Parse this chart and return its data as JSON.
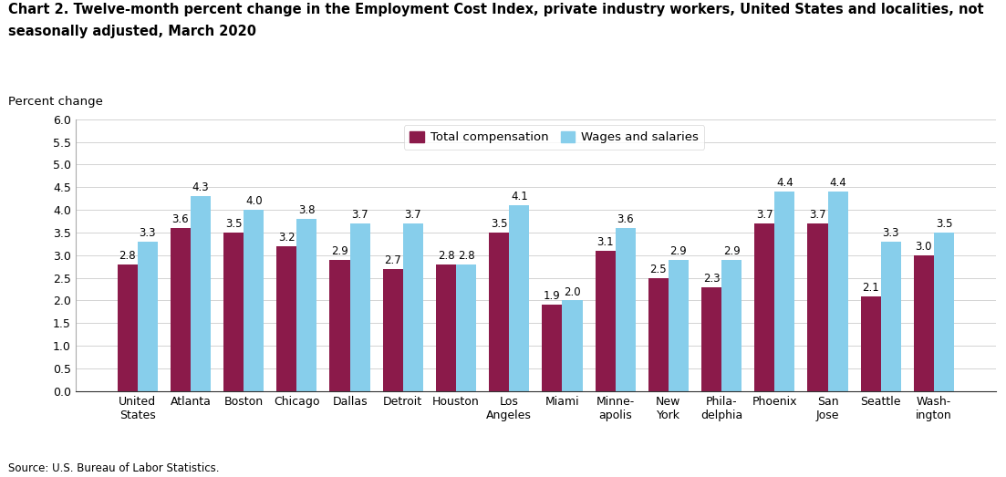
{
  "title_line1": "Chart 2. Twelve-month percent change in the Employment Cost Index, private industry workers, United States and localities, not",
  "title_line2": "seasonally adjusted, March 2020",
  "ylabel_text": "Percent change",
  "source": "Source: U.S. Bureau of Labor Statistics.",
  "categories": [
    "United\nStates",
    "Atlanta",
    "Boston",
    "Chicago",
    "Dallas",
    "Detroit",
    "Houston",
    "Los\nAngeles",
    "Miami",
    "Minne-\napolis",
    "New\nYork",
    "Phila-\ndelphia",
    "Phoenix",
    "San\nJose",
    "Seattle",
    "Wash-\nington"
  ],
  "total_compensation": [
    2.8,
    3.6,
    3.5,
    3.2,
    2.9,
    2.7,
    2.8,
    3.5,
    1.9,
    3.1,
    2.5,
    2.3,
    3.7,
    3.7,
    2.1,
    3.0
  ],
  "wages_salaries": [
    3.3,
    4.3,
    4.0,
    3.8,
    3.7,
    3.7,
    2.8,
    4.1,
    2.0,
    3.6,
    2.9,
    2.9,
    4.4,
    4.4,
    3.3,
    3.5
  ],
  "total_comp_color": "#8B1A4A",
  "wages_color": "#87CEEB",
  "ylim": [
    0.0,
    6.0
  ],
  "yticks": [
    0.0,
    0.5,
    1.0,
    1.5,
    2.0,
    2.5,
    3.0,
    3.5,
    4.0,
    4.5,
    5.0,
    5.5,
    6.0
  ],
  "legend_labels": [
    "Total compensation",
    "Wages and salaries"
  ],
  "bar_width": 0.38,
  "title_fontsize": 10.5,
  "label_fontsize": 9.5,
  "tick_fontsize": 9,
  "value_fontsize": 8.5
}
